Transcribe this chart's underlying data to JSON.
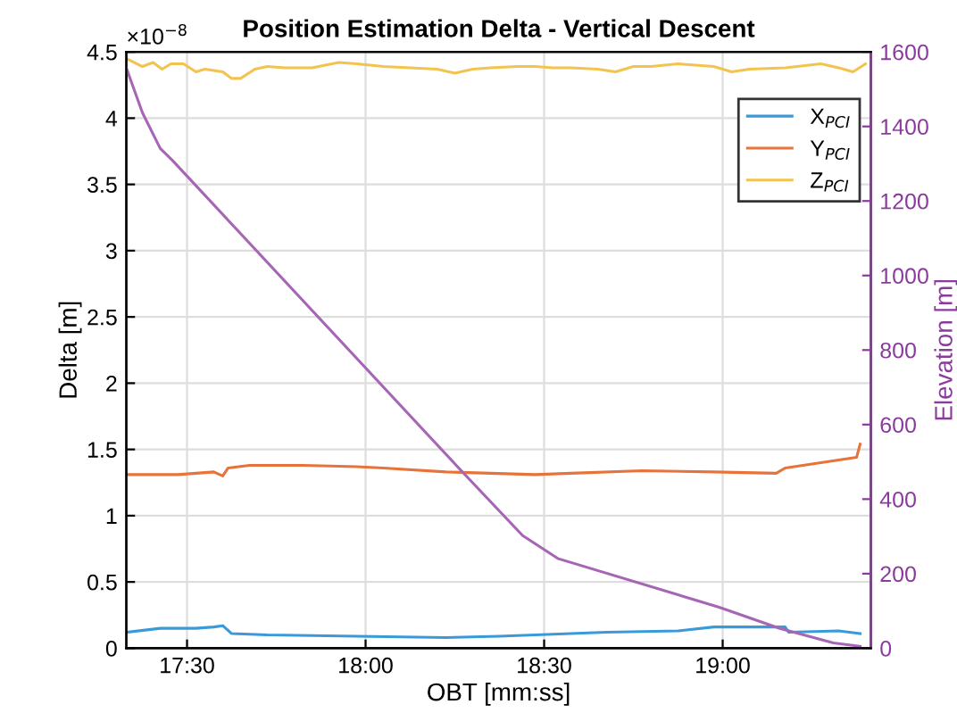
{
  "chart_data": {
    "type": "line",
    "title": "Position Estimation Delta - Vertical Descent",
    "xlabel": "OBT [mm:ss]",
    "ylabel": "Delta [m]",
    "y2label": "Elevation [m]",
    "annotations": [
      "×10$^{−8}$"
    ],
    "xlim": [
      17.33,
      19.415
    ],
    "xticks": [
      {
        "value": 17.5,
        "label": "17:30"
      },
      {
        "value": 18,
        "label": "18:00"
      },
      {
        "value": 18.5,
        "label": "18:30"
      },
      {
        "value": 19,
        "label": "19:00"
      }
    ],
    "ylim": [
      0,
      4.5
    ],
    "yticks": [
      0,
      0.5,
      1,
      1.5,
      2,
      2.5,
      3,
      3.5,
      4,
      4.5
    ],
    "y2lim": [
      0,
      1600
    ],
    "y2ticks": [
      0,
      200,
      400,
      600,
      800,
      1000,
      1200,
      1400,
      1600
    ],
    "grid": true,
    "legend": "top right",
    "series": [
      {
        "name": "X$_{PCI}$",
        "color": "#3a9ad9",
        "x": [
          17.33,
          17.425,
          17.525,
          17.575,
          17.6,
          17.625,
          17.725,
          17.975,
          18.225,
          18.375,
          18.475,
          18.675,
          18.875,
          18.975,
          19.175,
          19.185,
          19.325,
          19.385
        ],
        "values": [
          0.12,
          0.15,
          0.15,
          0.16,
          0.17,
          0.11,
          0.1,
          0.09,
          0.08,
          0.09,
          0.1,
          0.12,
          0.13,
          0.16,
          0.16,
          0.12,
          0.13,
          0.11
        ]
      },
      {
        "name": "Y$_{PCI}$",
        "color": "#e8733a",
        "x": [
          17.33,
          17.475,
          17.575,
          17.6,
          17.615,
          17.675,
          17.825,
          17.975,
          18.05,
          18.225,
          18.475,
          18.575,
          18.775,
          18.975,
          19.15,
          19.175,
          19.375,
          19.385
        ],
        "values": [
          1.31,
          1.31,
          1.33,
          1.3,
          1.36,
          1.38,
          1.38,
          1.37,
          1.36,
          1.33,
          1.31,
          1.32,
          1.34,
          1.33,
          1.32,
          1.36,
          1.44,
          1.54
        ]
      },
      {
        "name": "Z$_{PCI}$",
        "color": "#f2c44f",
        "x": [
          17.33,
          17.375,
          17.405,
          17.43,
          17.455,
          17.49,
          17.525,
          17.55,
          17.6,
          17.625,
          17.65,
          17.69,
          17.725,
          17.775,
          17.85,
          17.925,
          17.975,
          18.05,
          18.125,
          18.2,
          18.25,
          18.3,
          18.35,
          18.425,
          18.475,
          18.525,
          18.575,
          18.65,
          18.7,
          18.75,
          18.8,
          18.875,
          18.975,
          19.025,
          19.075,
          19.175,
          19.275,
          19.325,
          19.365,
          19.4
        ],
        "values": [
          4.45,
          4.39,
          4.42,
          4.37,
          4.41,
          4.41,
          4.35,
          4.37,
          4.35,
          4.3,
          4.3,
          4.37,
          4.39,
          4.38,
          4.38,
          4.42,
          4.41,
          4.39,
          4.38,
          4.37,
          4.34,
          4.37,
          4.38,
          4.39,
          4.39,
          4.38,
          4.38,
          4.37,
          4.35,
          4.39,
          4.39,
          4.41,
          4.39,
          4.35,
          4.37,
          4.38,
          4.41,
          4.38,
          4.35,
          4.41
        ]
      },
      {
        "color": "#a665b5",
        "axis": "y2",
        "x": [
          17.33,
          17.375,
          17.425,
          17.46,
          18.275,
          18.44,
          18.54,
          18.99,
          19.16,
          19.31,
          19.385
        ],
        "values": [
          1557,
          1437,
          1341,
          1308,
          469,
          302,
          240,
          110,
          53,
          14,
          5
        ]
      }
    ]
  }
}
